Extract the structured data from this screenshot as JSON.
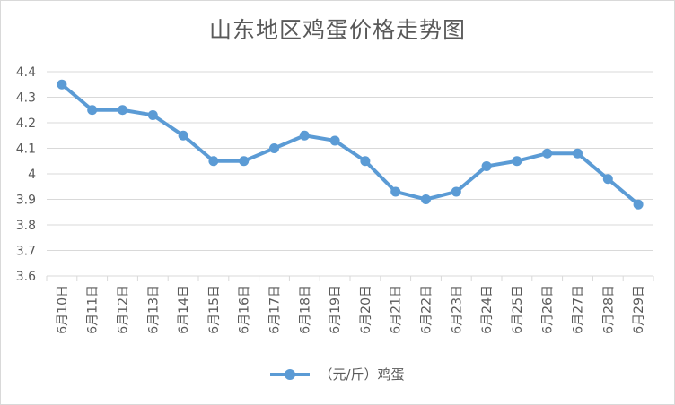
{
  "chart_data": {
    "type": "line",
    "title": "山东地区鸡蛋价格走势图",
    "categories": [
      "6月10日",
      "6月11日",
      "6月12日",
      "6月13日",
      "6月14日",
      "6月15日",
      "6月16日",
      "6月17日",
      "6月18日",
      "6月19日",
      "6月20日",
      "6月21日",
      "6月22日",
      "6月23日",
      "6月24日",
      "6月25日",
      "6月26日",
      "6月27日",
      "6月28日",
      "6月29日"
    ],
    "series": [
      {
        "name": "（元/斤）鸡蛋",
        "values": [
          4.35,
          4.25,
          4.25,
          4.23,
          4.15,
          4.05,
          4.05,
          4.1,
          4.15,
          4.13,
          4.05,
          3.93,
          3.9,
          3.93,
          4.03,
          4.05,
          4.08,
          4.08,
          3.98,
          3.88
        ]
      }
    ],
    "ylim": [
      3.6,
      4.4
    ],
    "yticks": [
      "3.6",
      "3.7",
      "3.8",
      "3.9",
      "4",
      "4.1",
      "4.2",
      "4.3",
      "4.4"
    ],
    "grid": true,
    "legend_position": "bottom",
    "colors": {
      "series": "#5B9BD5",
      "grid": "#d9d9d9",
      "text": "#595959"
    }
  }
}
